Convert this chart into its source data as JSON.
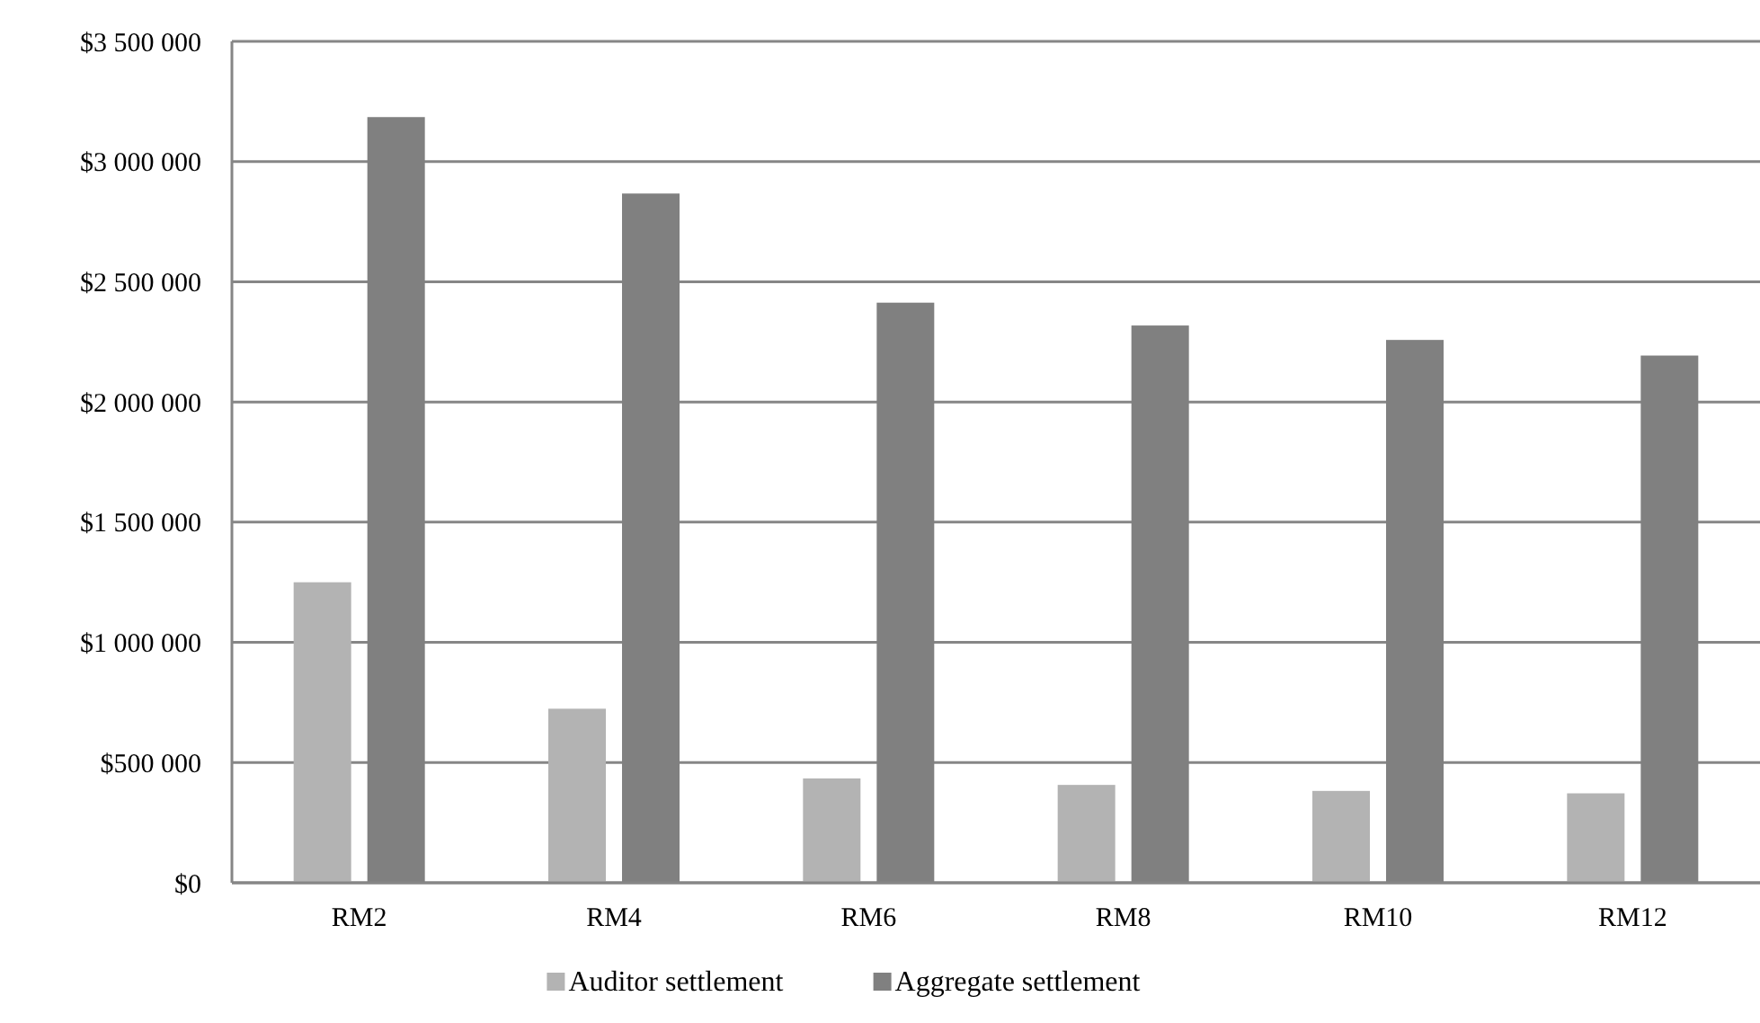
{
  "chart_data": {
    "type": "bar",
    "categories": [
      "RM2",
      "RM4",
      "RM6",
      "RM8",
      "RM10",
      "RM12"
    ],
    "series": [
      {
        "name": "Auditor settlement",
        "color": "#b3b3b3",
        "values": [
          1250000,
          724000,
          434000,
          407000,
          382000,
          372000
        ]
      },
      {
        "name": "Aggregate settlement",
        "color": "#808080",
        "values": [
          3185000,
          2867000,
          2413000,
          2318000,
          2258000,
          2193000
        ]
      }
    ],
    "ylim": [
      0,
      3500000
    ],
    "yticks": [
      {
        "value": 0,
        "label": "$0"
      },
      {
        "value": 500000,
        "label": "$500 000"
      },
      {
        "value": 1000000,
        "label": "$1 000 000"
      },
      {
        "value": 1500000,
        "label": "$1 500 000"
      },
      {
        "value": 2000000,
        "label": "$2 000 000"
      },
      {
        "value": 2500000,
        "label": "$2 500 000"
      },
      {
        "value": 3000000,
        "label": "$3 000 000"
      },
      {
        "value": 3500000,
        "label": "$3 500 000"
      }
    ],
    "grid": "y",
    "legend": "bottom"
  }
}
